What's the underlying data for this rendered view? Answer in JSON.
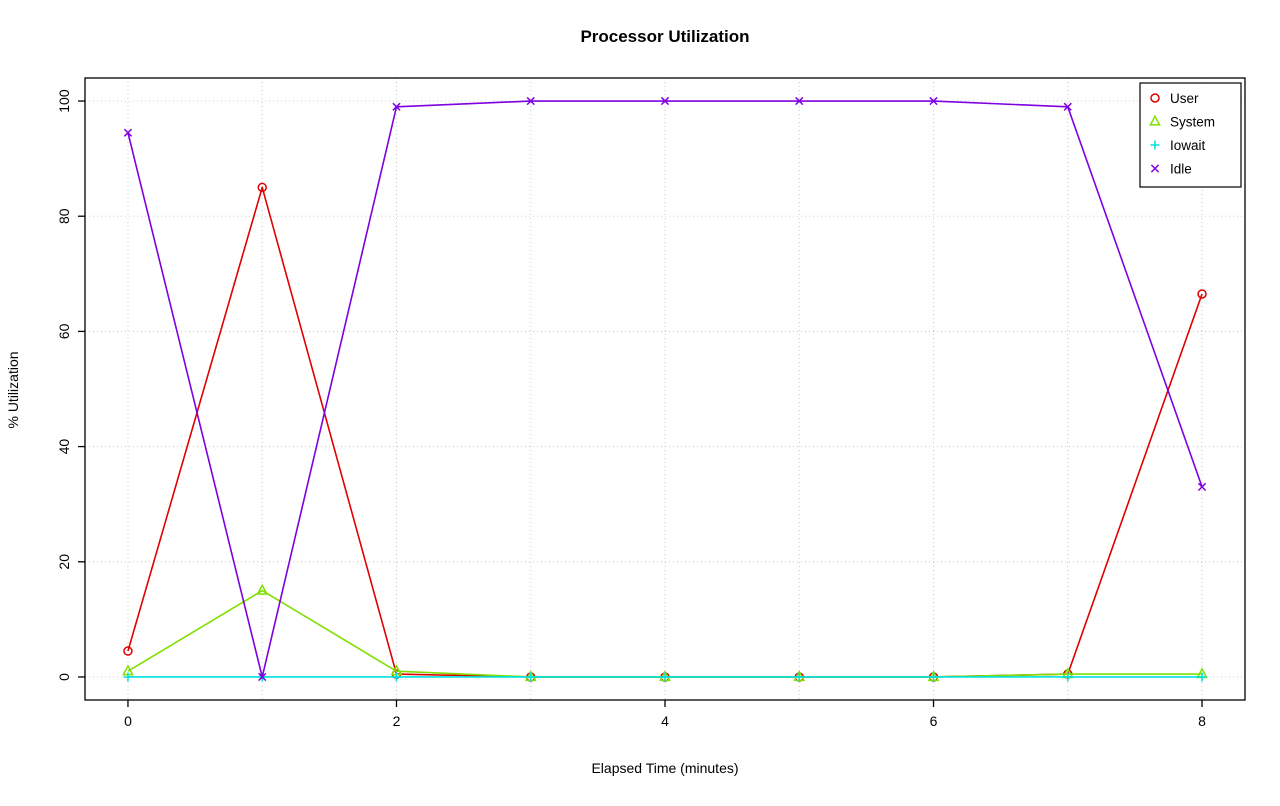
{
  "chart_data": {
    "type": "line",
    "title": "Processor Utilization",
    "xlabel": "Elapsed Time (minutes)",
    "ylabel": "% Utilization",
    "x": [
      0,
      1,
      2,
      3,
      4,
      5,
      6,
      7,
      8
    ],
    "xlim": [
      0,
      8
    ],
    "ylim": [
      0,
      100
    ],
    "x_ticks": [
      0,
      2,
      4,
      6,
      8
    ],
    "y_ticks": [
      0,
      20,
      40,
      60,
      80,
      100
    ],
    "grid": true,
    "grid_style": "dotted-lightgray",
    "legend_position": "top-right",
    "series": [
      {
        "name": "User",
        "color": "#e00000",
        "marker": "circle",
        "values": [
          4.5,
          85,
          0.5,
          0,
          0,
          0,
          0,
          0.5,
          66.5
        ]
      },
      {
        "name": "System",
        "color": "#7fe000",
        "marker": "triangle",
        "values": [
          1,
          15,
          1,
          0,
          0,
          0,
          0,
          0.5,
          0.5
        ]
      },
      {
        "name": "Iowait",
        "color": "#00e0e0",
        "marker": "plus",
        "values": [
          0,
          0,
          0,
          0,
          0,
          0,
          0,
          0,
          0
        ]
      },
      {
        "name": "Idle",
        "color": "#7f00e0",
        "marker": "x",
        "values": [
          94.5,
          0,
          99,
          100,
          100,
          100,
          100,
          99,
          33
        ]
      }
    ]
  }
}
